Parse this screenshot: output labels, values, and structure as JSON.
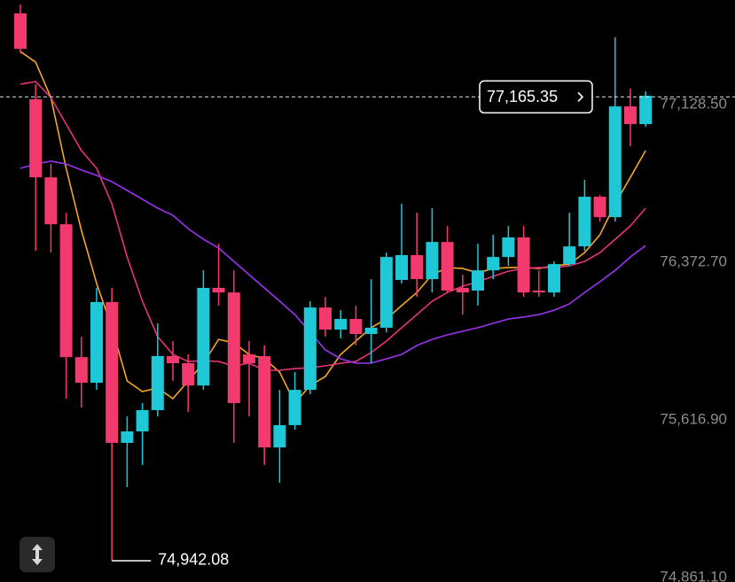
{
  "chart_data": {
    "type": "candlestick",
    "ylim": [
      74840,
      77630
    ],
    "yticks": [
      {
        "value": 77128.5,
        "label": "77,128.50"
      },
      {
        "value": 76372.7,
        "label": "76,372.70"
      },
      {
        "value": 75616.9,
        "label": "75,616.90"
      },
      {
        "value": 74861.1,
        "label": "74,861.10"
      }
    ],
    "up_color": "#1fc8d6",
    "down_color": "#f23a6e",
    "open": [
      77566,
      77154,
      76780,
      76555,
      75918,
      75795,
      76182,
      75507,
      75562,
      75664,
      75923,
      75889,
      75782,
      76250,
      76228,
      75931,
      75923,
      75485,
      75592,
      75761,
      76156,
      76050,
      76101,
      76029,
      76059,
      76288,
      76407,
      76292,
      76470,
      76250,
      76237,
      76334,
      76398,
      76492,
      76237,
      76228,
      76364,
      76449,
      76687,
      76589,
      77120,
      77035
    ],
    "high": [
      77608,
      77226,
      76844,
      76610,
      76016,
      76250,
      76250,
      75634,
      75698,
      76080,
      75995,
      75931,
      76334,
      76462,
      76334,
      75995,
      75974,
      75761,
      75846,
      76186,
      76207,
      76143,
      76165,
      76292,
      76419,
      76653,
      76610,
      76632,
      76547,
      76313,
      76462,
      76504,
      76547,
      76547,
      76334,
      76377,
      76610,
      76768,
      76695,
      77451,
      77205,
      77192
    ],
    "low": [
      77375,
      76428,
      76419,
      75719,
      75676,
      75761,
      74942.08,
      75295,
      75401,
      75634,
      75804,
      75655,
      75761,
      76165,
      75507,
      75634,
      75401,
      75316,
      75570,
      75740,
      76016,
      76008,
      75974,
      75889,
      76037,
      76271,
      76207,
      76228,
      76228,
      76122,
      76165,
      76292,
      76356,
      76207,
      76207,
      76207,
      76356,
      76428,
      76568,
      76568,
      76929,
      77022
    ],
    "close": [
      77396,
      76780,
      76555,
      75918,
      75795,
      76182,
      75507,
      75562,
      75664,
      75923,
      75889,
      75782,
      76250,
      76228,
      75698,
      75889,
      75485,
      75592,
      75761,
      76156,
      76050,
      76101,
      76029,
      76059,
      76398,
      76407,
      76292,
      76470,
      76237,
      76228,
      76334,
      76398,
      76492,
      76228,
      76228,
      76364,
      76449,
      76687,
      76589,
      77120,
      77035,
      77171
    ],
    "series": [
      {
        "color": "#f5a623",
        "values": [
          77383,
          77332,
          77162,
          76823,
          76526,
          76271,
          76059,
          75804,
          75753,
          75770,
          75719,
          75804,
          75889,
          76003,
          75986,
          75931,
          75910,
          75846,
          75698,
          75782,
          75825,
          75931,
          75995,
          76059,
          76101,
          76165,
          76228,
          76313,
          76347,
          76343,
          76322,
          76343,
          76347,
          76347,
          76343,
          76356,
          76364,
          76419,
          76504,
          76653,
          76780,
          76908
        ]
      },
      {
        "color": "#e8317a",
        "values": [
          77226,
          77239,
          77162,
          77035,
          76908,
          76823,
          76653,
          76398,
          76186,
          76016,
          75931,
          75897,
          75901,
          75897,
          75876,
          75889,
          75855,
          75855,
          75863,
          75867,
          75876,
          75889,
          75897,
          75940,
          75995,
          76059,
          76122,
          76186,
          76228,
          76258,
          76279,
          76305,
          76330,
          76343,
          76347,
          76347,
          76356,
          76377,
          76419,
          76483,
          76547,
          76632
        ]
      },
      {
        "color": "#9b32f0",
        "values": [
          76823,
          76844,
          76857,
          76844,
          76815,
          76789,
          76759,
          76717,
          76675,
          76632,
          76598,
          76534,
          76483,
          76441,
          76377,
          76313,
          76250,
          76186,
          76122,
          76037,
          75952,
          75910,
          75889,
          75889,
          75910,
          75931,
          75974,
          76003,
          76025,
          76042,
          76059,
          76080,
          76101,
          76110,
          76122,
          76143,
          76173,
          76228,
          76279,
          76334,
          76398,
          76453
        ]
      }
    ],
    "last_price": {
      "value": 77165.35,
      "label": "77,165.35"
    },
    "low_marker": {
      "value": 74942.08,
      "label": "74,942.08"
    }
  }
}
